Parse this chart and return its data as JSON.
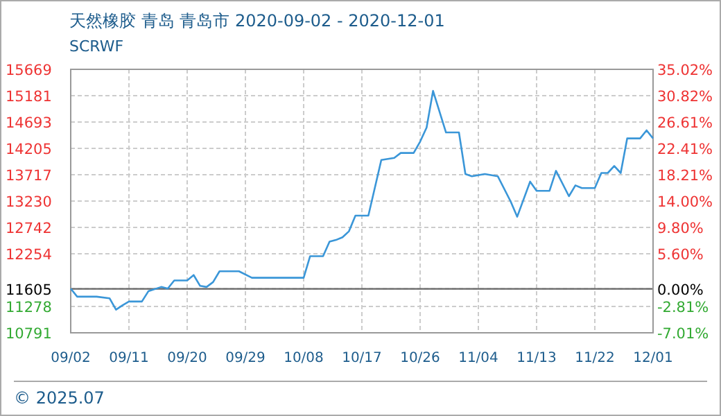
{
  "chart_data": {
    "type": "line",
    "title": "天然橡胶 青岛 青岛市 2020-09-02 - 2020-12-01",
    "subtitle": "SCRWF",
    "x": [
      "2020-09-02",
      "2020-09-03",
      "2020-09-06",
      "2020-09-08",
      "2020-09-09",
      "2020-09-10",
      "2020-09-11",
      "2020-09-13",
      "2020-09-14",
      "2020-09-16",
      "2020-09-17",
      "2020-09-18",
      "2020-09-20",
      "2020-09-21",
      "2020-09-22",
      "2020-09-23",
      "2020-09-24",
      "2020-09-25",
      "2020-09-28",
      "2020-09-30",
      "2020-10-08",
      "2020-10-09",
      "2020-10-11",
      "2020-10-12",
      "2020-10-13",
      "2020-10-14",
      "2020-10-15",
      "2020-10-16",
      "2020-10-18",
      "2020-10-20",
      "2020-10-22",
      "2020-10-23",
      "2020-10-25",
      "2020-10-26",
      "2020-10-27",
      "2020-10-28",
      "2020-10-30",
      "2020-11-01",
      "2020-11-02",
      "2020-11-03",
      "2020-11-05",
      "2020-11-07",
      "2020-11-09",
      "2020-11-10",
      "2020-11-12",
      "2020-11-13",
      "2020-11-15",
      "2020-11-16",
      "2020-11-18",
      "2020-11-19",
      "2020-11-20",
      "2020-11-22",
      "2020-11-23",
      "2020-11-24",
      "2020-11-25",
      "2020-11-26",
      "2020-11-27",
      "2020-11-29",
      "2020-11-30",
      "2020-12-01"
    ],
    "series": [
      {
        "color": "#3a96d8",
        "values": [
          11610,
          11460,
          11460,
          11430,
          11220,
          11300,
          11370,
          11370,
          11560,
          11640,
          11610,
          11760,
          11760,
          11860,
          11660,
          11640,
          11730,
          11930,
          11930,
          11810,
          11810,
          12210,
          12210,
          12480,
          12510,
          12560,
          12670,
          12960,
          12960,
          13990,
          14030,
          14120,
          14120,
          14330,
          14590,
          15270,
          14500,
          14500,
          13730,
          13690,
          13730,
          13690,
          13220,
          12940,
          13590,
          13420,
          13420,
          13790,
          13320,
          13520,
          13470,
          13470,
          13750,
          13750,
          13880,
          13750,
          14390,
          14390,
          14540,
          14390
        ]
      }
    ],
    "xlim": [
      "2020-09-02",
      "2020-12-01"
    ],
    "xticks": [
      {
        "value": "2020-09-02",
        "label": "09/02"
      },
      {
        "value": "2020-09-11",
        "label": "09/11"
      },
      {
        "value": "2020-09-20",
        "label": "09/20"
      },
      {
        "value": "2020-09-29",
        "label": "09/29"
      },
      {
        "value": "2020-10-08",
        "label": "10/08"
      },
      {
        "value": "2020-10-17",
        "label": "10/17"
      },
      {
        "value": "2020-10-26",
        "label": "10/26"
      },
      {
        "value": "2020-11-04",
        "label": "11/04"
      },
      {
        "value": "2020-11-13",
        "label": "11/13"
      },
      {
        "value": "2020-11-22",
        "label": "11/22"
      },
      {
        "value": "2020-12-01",
        "label": "12/01"
      }
    ],
    "ylim": [
      10791,
      15669
    ],
    "yticks": [
      10791,
      11278,
      11605,
      12254,
      12742,
      13230,
      13717,
      14205,
      14693,
      15181,
      15669
    ],
    "y2lim": [
      -7.01,
      35.02
    ],
    "y2ticks": [
      {
        "value": -7.01,
        "label": "-7.01%"
      },
      {
        "value": -2.81,
        "label": "-2.81%"
      },
      {
        "value": 0,
        "label": "0.00%"
      },
      {
        "value": 5.6,
        "label": "5.60%"
      },
      {
        "value": 9.8,
        "label": "9.80%"
      },
      {
        "value": 14,
        "label": "14.00%"
      },
      {
        "value": 18.21,
        "label": "18.21%"
      },
      {
        "value": 22.41,
        "label": "22.41%"
      },
      {
        "value": 26.61,
        "label": "26.61%"
      },
      {
        "value": 30.82,
        "label": "30.82%"
      },
      {
        "value": 35.02,
        "label": "35.02%"
      }
    ],
    "ref_lines": [
      {
        "axis": "y",
        "value": 11605,
        "color": "#666666"
      }
    ],
    "grid": true,
    "marker": "none",
    "line_style": "solid",
    "annotations": [
      "© 2025.07"
    ]
  }
}
